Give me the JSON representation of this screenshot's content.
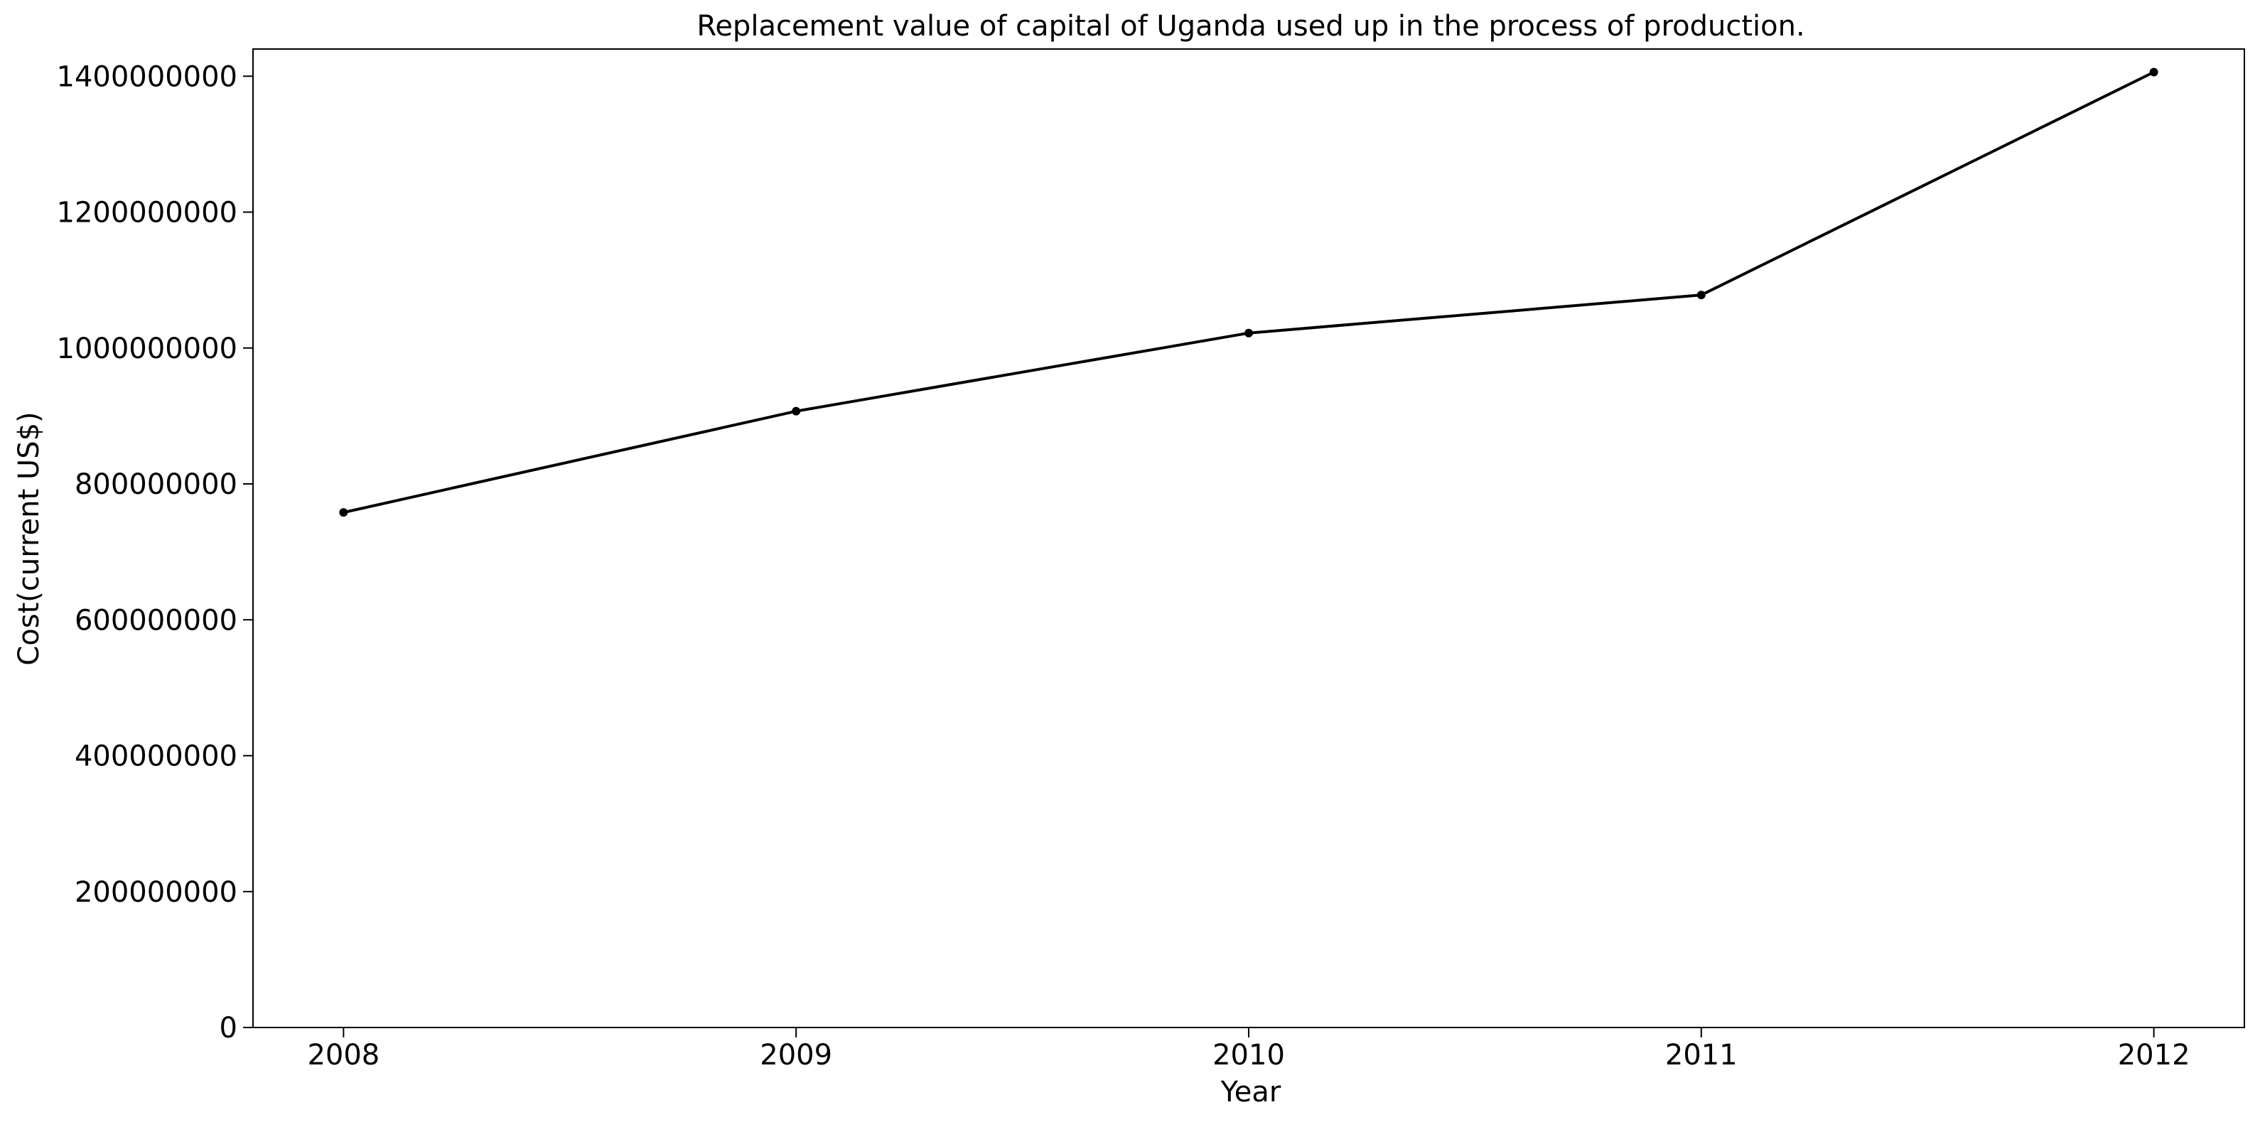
{
  "chart_data": {
    "type": "line",
    "title": "Replacement value of capital of Uganda used up in the process of production.",
    "xlabel": "Year",
    "ylabel": "Cost(current US$)",
    "x": [
      2008,
      2009,
      2010,
      2011,
      2012
    ],
    "series": [
      {
        "values": [
          758000000,
          907000000,
          1022000000,
          1078000000,
          1406000000
        ]
      }
    ],
    "x_ticks": [
      "2008",
      "2009",
      "2010",
      "2011",
      "2012"
    ],
    "y_ticks": [
      "0",
      "200000000",
      "400000000",
      "600000000",
      "800000000",
      "1000000000",
      "1200000000",
      "1400000000"
    ],
    "ylim": [
      0,
      1440000000
    ],
    "xlim": [
      2007.8,
      2012.2
    ],
    "grid": false,
    "colors": {
      "line": "#000000",
      "marker": "#000000",
      "background": "#ffffff"
    }
  }
}
